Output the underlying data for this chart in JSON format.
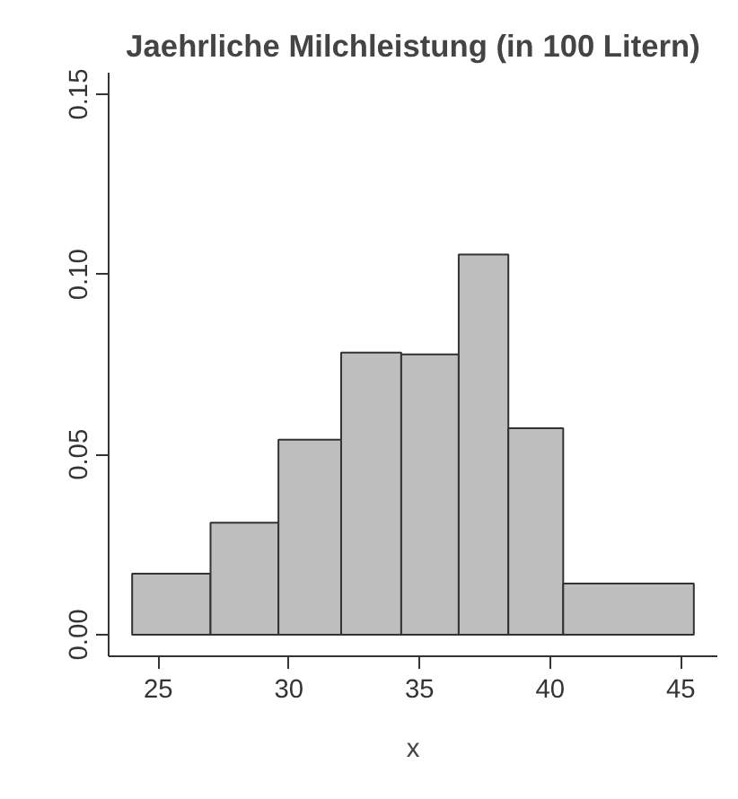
{
  "chart_data": {
    "type": "histogram",
    "title": "Jaehrliche Milchleistung (in 100 Litern)",
    "xlabel": "x",
    "bins": [
      24.0,
      27.0,
      29.6,
      32.0,
      34.3,
      36.5,
      38.4,
      40.5,
      45.5
    ],
    "values": [
      0.0169,
      0.0311,
      0.0541,
      0.0783,
      0.0778,
      0.1055,
      0.0573,
      0.0142
    ],
    "color": "#bebebe",
    "xlim": [
      23.1,
      46.4
    ],
    "ylim": [
      -0.006,
      0.156
    ],
    "xticks": [
      25,
      30,
      35,
      40,
      45
    ],
    "yticks": [
      {
        "value": 0,
        "label": "0.00"
      },
      {
        "value": 0.05,
        "label": "0.05"
      },
      {
        "value": 0.1,
        "label": "0.10"
      },
      {
        "value": 0.15,
        "label": "0.15"
      }
    ],
    "grid": false
  }
}
